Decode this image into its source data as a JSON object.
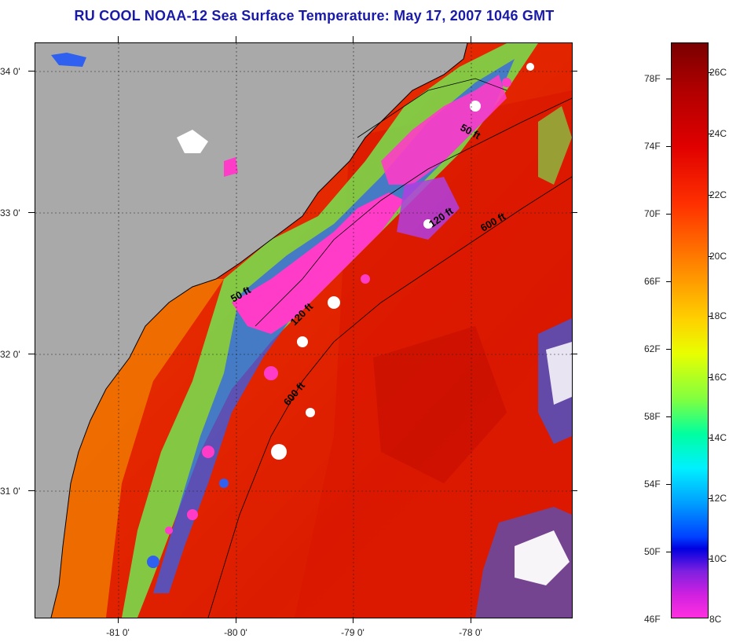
{
  "title": "RU COOL  NOAA-12  Sea Surface Temperature:  May 17, 2007 1046 GMT",
  "latitude_labels": [
    "34 0'",
    "33 0'",
    "32 0'",
    "31 0'"
  ],
  "longitude_labels": [
    "-81 0'",
    "-80 0'",
    "-79 0'",
    "-78 0'"
  ],
  "contour_labels": {
    "c50_north": "50 ft",
    "c120_north": "120 ft",
    "c600_north": "600 ft",
    "c50_south": "50 ft",
    "c120_south": "120 ft",
    "c600_south": "600 ft"
  },
  "colorbar": {
    "fahrenheit": [
      "78F",
      "74F",
      "70F",
      "66F",
      "62F",
      "58F",
      "54F",
      "50F",
      "46F"
    ],
    "celsius": [
      "26C",
      "24C",
      "22C",
      "20C",
      "18C",
      "16C",
      "14C",
      "12C",
      "10C",
      "8C"
    ]
  },
  "colors": {
    "land": "#a9a9a9",
    "title": "#1a1aa8",
    "warm_water": "#e61e00",
    "cloud": "#ff40c8"
  }
}
